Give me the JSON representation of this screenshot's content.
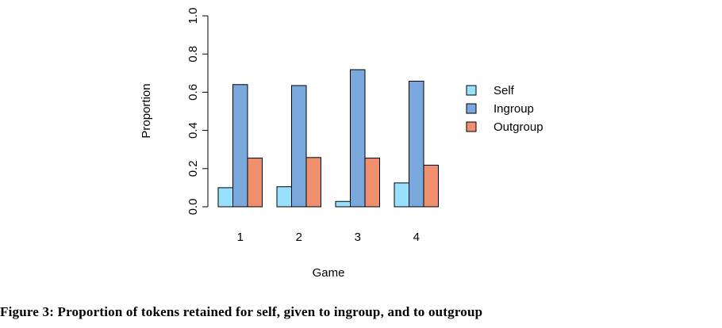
{
  "chart_data": {
    "type": "bar",
    "categories": [
      "1",
      "2",
      "3",
      "4"
    ],
    "series": [
      {
        "name": "Self",
        "color": "#99e0ff",
        "values": [
          0.1,
          0.105,
          0.028,
          0.125
        ]
      },
      {
        "name": "Ingroup",
        "color": "#7aa8dc",
        "values": [
          0.64,
          0.635,
          0.718,
          0.658
        ]
      },
      {
        "name": "Outgroup",
        "color": "#f08f6e",
        "values": [
          0.255,
          0.258,
          0.255,
          0.218
        ]
      }
    ],
    "xlabel": "Game",
    "ylabel": "Proportion",
    "ylim": [
      0,
      1
    ],
    "yticks": [
      "0.0",
      "0.2",
      "0.4",
      "0.6",
      "0.8",
      "1.0"
    ],
    "legend_position": "right",
    "grid": false
  },
  "caption": "Figure 3: Proportion of tokens retained for self, given to ingroup, and to outgroup"
}
